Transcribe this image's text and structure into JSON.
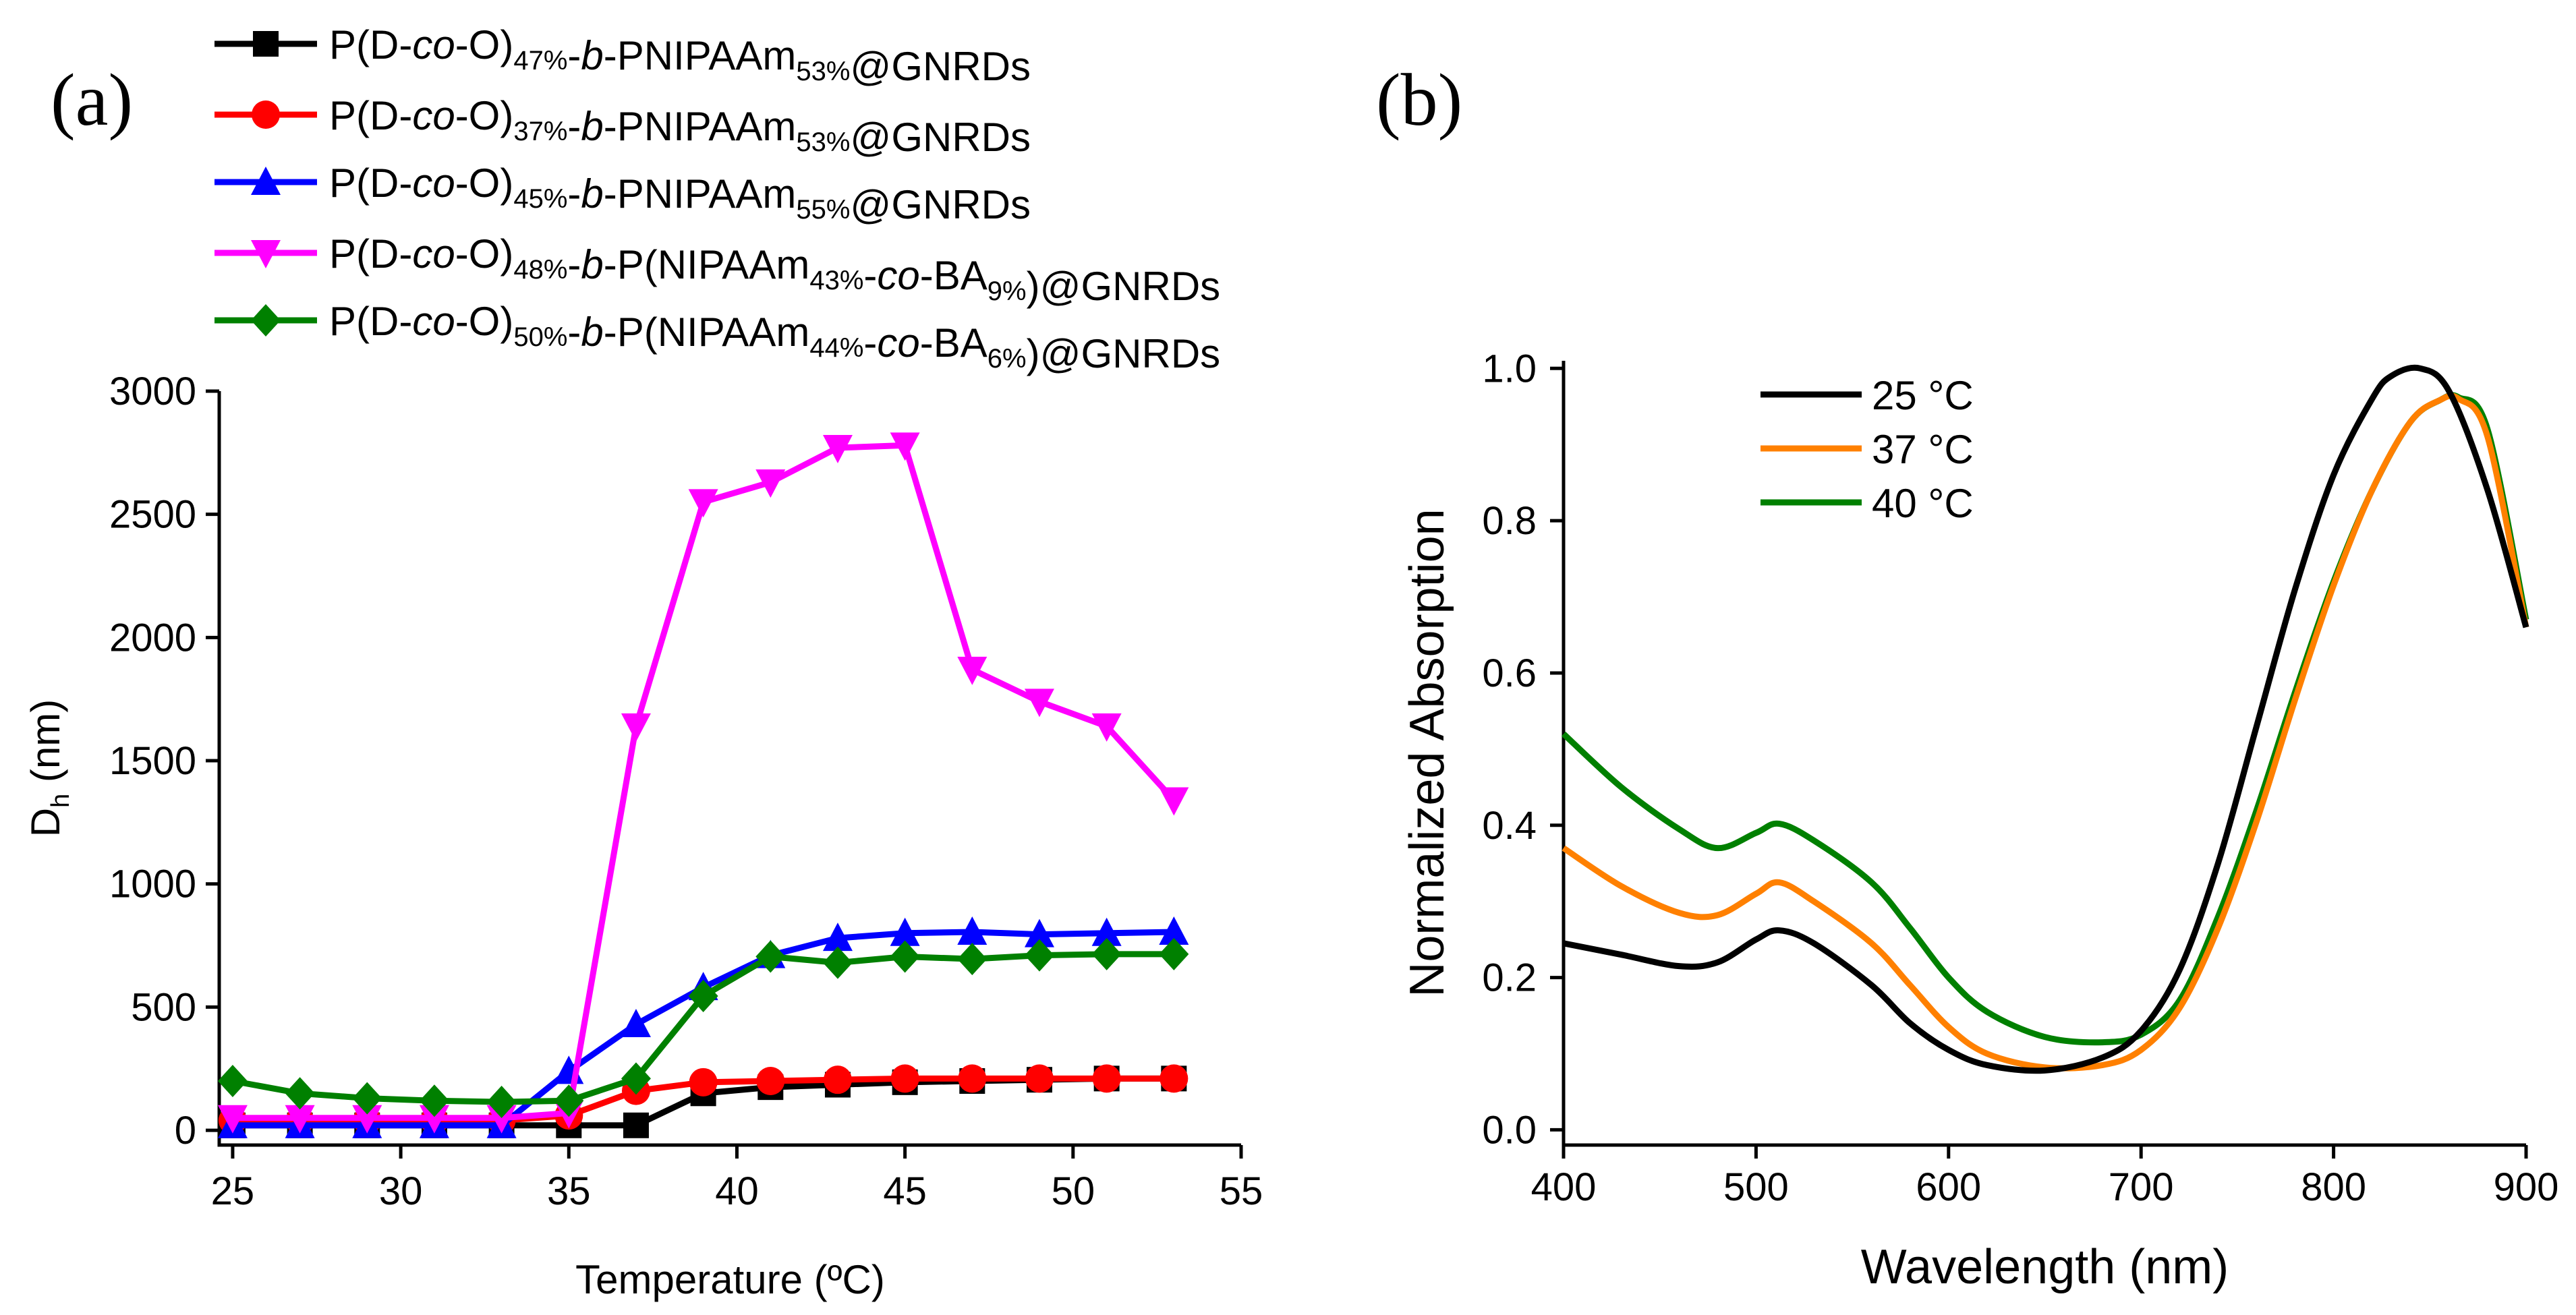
{
  "chart_data": [
    {
      "id": "a",
      "type": "line",
      "panel_label": "(a)",
      "title": "",
      "xlabel": "Temperature (ºC)",
      "ylabel": "D",
      "ylabel_sub": "h",
      "ylabel_unit": " (nm)",
      "xlim": [
        24.6,
        55
      ],
      "ylim": [
        -60,
        3000
      ],
      "xticks": [
        "25",
        "30",
        "35",
        "40",
        "45",
        "50",
        "55"
      ],
      "yticks": [
        "0",
        "500",
        "1000",
        "1500",
        "2000",
        "2500",
        "3000"
      ],
      "x": [
        25,
        27,
        29,
        31,
        33,
        35,
        37,
        39,
        41,
        43,
        45,
        47,
        49,
        51,
        53
      ],
      "series": [
        {
          "name": "P(D-co-O)47%-b-PNIPAAm53%@GNRDs",
          "legend_parts": [
            {
              "text": "P(D-",
              "style": "n"
            },
            {
              "text": "co",
              "style": "i"
            },
            {
              "text": "-O)",
              "style": "n"
            },
            {
              "text": "47%",
              "style": "sub"
            },
            {
              "text": "-",
              "style": "n"
            },
            {
              "text": "b",
              "style": "i"
            },
            {
              "text": "-PNIPAAm",
              "style": "n"
            },
            {
              "text": "53%",
              "style": "sub"
            },
            {
              "text": "@GNRDs",
              "style": "n"
            }
          ],
          "color": "#000000",
          "marker": "square",
          "values": [
            20,
            20,
            20,
            20,
            20,
            20,
            20,
            150,
            175,
            185,
            195,
            200,
            205,
            210,
            210
          ]
        },
        {
          "name": "P(D-co-O)37%-b-PNIPAAm53%@GNRDs",
          "legend_parts": [
            {
              "text": "P(D-",
              "style": "n"
            },
            {
              "text": "co",
              "style": "i"
            },
            {
              "text": "-O)",
              "style": "n"
            },
            {
              "text": "37%",
              "style": "sub"
            },
            {
              "text": "-",
              "style": "n"
            },
            {
              "text": "b",
              "style": "i"
            },
            {
              "text": "-PNIPAAm",
              "style": "n"
            },
            {
              "text": "53%",
              "style": "sub"
            },
            {
              "text": "@GNRDs",
              "style": "n"
            }
          ],
          "color": "#ff0000",
          "marker": "circle",
          "values": [
            40,
            40,
            40,
            40,
            40,
            60,
            160,
            195,
            200,
            205,
            210,
            210,
            210,
            210,
            210
          ]
        },
        {
          "name": "P(D-co-O)45%-b-PNIPAAm55%@GNRDs",
          "legend_parts": [
            {
              "text": "P(D-",
              "style": "n"
            },
            {
              "text": "co",
              "style": "i"
            },
            {
              "text": "-O)",
              "style": "n"
            },
            {
              "text": "45%",
              "style": "sub"
            },
            {
              "text": "-",
              "style": "n"
            },
            {
              "text": "b",
              "style": "i"
            },
            {
              "text": "-PNIPAAm",
              "style": "n"
            },
            {
              "text": "55%",
              "style": "sub"
            },
            {
              "text": "@GNRDs",
              "style": "n"
            }
          ],
          "color": "#0000ff",
          "marker": "triangle-up",
          "values": [
            20,
            20,
            20,
            20,
            20,
            240,
            430,
            580,
            710,
            780,
            800,
            805,
            795,
            800,
            805
          ]
        },
        {
          "name": "P(D-co-O)48%-b-P(NIPAAm43%-co-BA9%)@GNRDs",
          "legend_parts": [
            {
              "text": "P(D-",
              "style": "n"
            },
            {
              "text": "co",
              "style": "i"
            },
            {
              "text": "-O)",
              "style": "n"
            },
            {
              "text": "48%",
              "style": "sub"
            },
            {
              "text": "-",
              "style": "n"
            },
            {
              "text": "b",
              "style": "i"
            },
            {
              "text": "-P(NIPAAm",
              "style": "n"
            },
            {
              "text": "43%",
              "style": "sub"
            },
            {
              "text": "-",
              "style": "n"
            },
            {
              "text": "co",
              "style": "i"
            },
            {
              "text": "-BA",
              "style": "n"
            },
            {
              "text": "9%",
              "style": "sub"
            },
            {
              "text": ")@GNRDs",
              "style": "n"
            }
          ],
          "color": "#ff00ff",
          "marker": "triangle-down",
          "values": [
            50,
            50,
            50,
            50,
            50,
            70,
            1640,
            2550,
            2630,
            2770,
            2780,
            1870,
            1740,
            1640,
            1340
          ]
        },
        {
          "name": "P(D-co-O)50%-b-P(NIPAAm44%-co-BA6%)@GNRDs",
          "legend_parts": [
            {
              "text": "P(D-",
              "style": "n"
            },
            {
              "text": "co",
              "style": "i"
            },
            {
              "text": "-O)",
              "style": "n"
            },
            {
              "text": "50%",
              "style": "sub"
            },
            {
              "text": "-",
              "style": "n"
            },
            {
              "text": "b",
              "style": "i"
            },
            {
              "text": "-P(NIPAAm",
              "style": "n"
            },
            {
              "text": "44%",
              "style": "sub"
            },
            {
              "text": "-",
              "style": "n"
            },
            {
              "text": "co",
              "style": "i"
            },
            {
              "text": "-BA",
              "style": "n"
            },
            {
              "text": "6%",
              "style": "sub"
            },
            {
              "text": ")@GNRDs",
              "style": "n"
            }
          ],
          "color": "#008000",
          "marker": "diamond",
          "values": [
            200,
            150,
            130,
            120,
            115,
            120,
            210,
            545,
            705,
            680,
            705,
            695,
            710,
            715,
            715
          ]
        }
      ]
    },
    {
      "id": "b",
      "type": "line",
      "panel_label": "(b)",
      "title": "",
      "xlabel": "Wavelength (nm)",
      "ylabel": "Normalized Absorption",
      "xlim": [
        400,
        900
      ],
      "ylim": [
        -0.02,
        1.01
      ],
      "xticks": [
        "400",
        "500",
        "600",
        "700",
        "800",
        "900"
      ],
      "yticks": [
        "0.0",
        "0.2",
        "0.4",
        "0.6",
        "0.8",
        "1.0"
      ],
      "series": [
        {
          "name": "25 °C",
          "color": "#000000",
          "x": [
            400,
            430,
            460,
            480,
            500,
            512,
            530,
            560,
            580,
            600,
            620,
            650,
            680,
            700,
            720,
            740,
            760,
            780,
            800,
            820,
            830,
            845,
            860,
            880,
            900
          ],
          "y": [
            0.245,
            0.23,
            0.215,
            0.22,
            0.25,
            0.262,
            0.245,
            0.19,
            0.14,
            0.105,
            0.085,
            0.078,
            0.095,
            0.13,
            0.21,
            0.35,
            0.53,
            0.71,
            0.86,
            0.96,
            0.99,
            1.0,
            0.97,
            0.84,
            0.66
          ]
        },
        {
          "name": "37 °C",
          "color": "#ff8000",
          "x": [
            400,
            430,
            460,
            480,
            500,
            512,
            530,
            560,
            580,
            600,
            620,
            650,
            680,
            700,
            720,
            740,
            760,
            780,
            800,
            820,
            840,
            855,
            865,
            880,
            900
          ],
          "y": [
            0.37,
            0.32,
            0.285,
            0.282,
            0.31,
            0.325,
            0.3,
            0.245,
            0.19,
            0.135,
            0.1,
            0.082,
            0.085,
            0.105,
            0.16,
            0.265,
            0.405,
            0.565,
            0.715,
            0.84,
            0.93,
            0.958,
            0.96,
            0.91,
            0.66
          ]
        },
        {
          "name": "40 °C",
          "color": "#008000",
          "x": [
            400,
            430,
            460,
            480,
            500,
            512,
            530,
            560,
            580,
            600,
            620,
            650,
            680,
            700,
            720,
            740,
            760,
            780,
            800,
            820,
            840,
            855,
            865,
            880,
            900
          ],
          "y": [
            0.52,
            0.45,
            0.395,
            0.37,
            0.39,
            0.402,
            0.38,
            0.325,
            0.265,
            0.2,
            0.155,
            0.122,
            0.115,
            0.125,
            0.17,
            0.28,
            0.42,
            0.575,
            0.72,
            0.84,
            0.93,
            0.958,
            0.962,
            0.92,
            0.67
          ]
        }
      ]
    }
  ]
}
